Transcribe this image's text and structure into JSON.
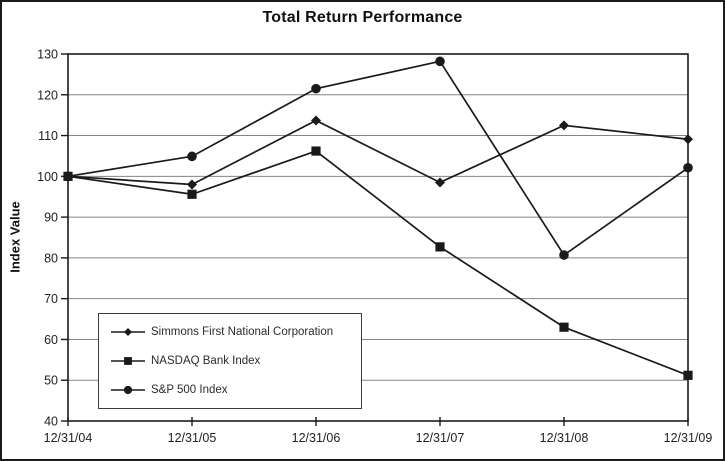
{
  "window": {
    "background_color": "#ffffff",
    "border_color": "#1a1a1a"
  },
  "chart_data": {
    "type": "line",
    "title": "Total Return Performance",
    "xlabel": "",
    "ylabel": "Index Value",
    "categories": [
      "12/31/04",
      "12/31/05",
      "12/31/06",
      "12/31/07",
      "12/31/08",
      "12/31/09"
    ],
    "series": [
      {
        "name": "Simmons First National Corporation",
        "marker": "diamond",
        "values": [
          100,
          98.0,
          113.7,
          98.5,
          112.5,
          109.1
        ]
      },
      {
        "name": "NASDAQ Bank Index",
        "marker": "square",
        "values": [
          100,
          95.6,
          106.2,
          82.7,
          63.0,
          51.2
        ]
      },
      {
        "name": "S&P 500 Index",
        "marker": "circle",
        "values": [
          100,
          104.9,
          121.5,
          128.2,
          80.7,
          102.1
        ]
      }
    ],
    "ylim": [
      40,
      130
    ],
    "yticks": [
      40,
      50,
      60,
      70,
      80,
      90,
      100,
      110,
      120,
      130
    ],
    "grid": true,
    "legend_position": "inside-bottom-left",
    "line_color": "#1a1a1a",
    "grid_color": "#848484",
    "tick_text_color": "#222222"
  }
}
